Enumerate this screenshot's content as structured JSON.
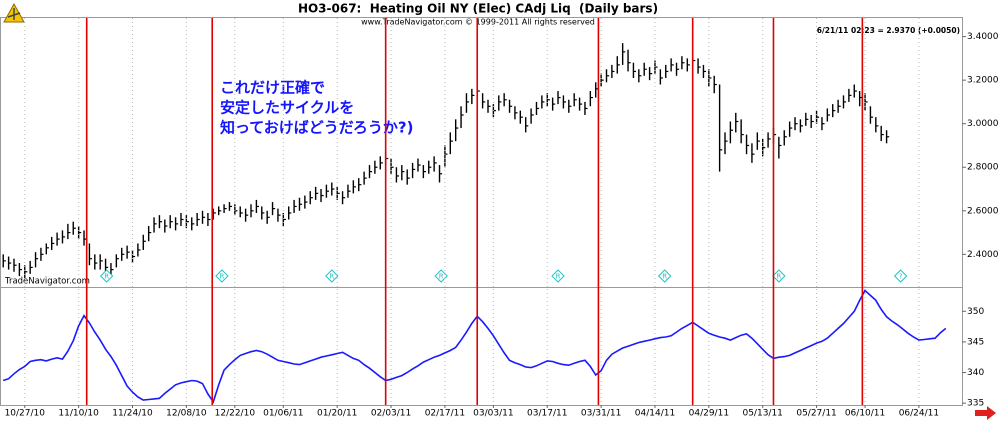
{
  "chart_data": [
    {
      "type": "hlc",
      "title": "HO3-067:  Heating Oil NY (Elec) CAdj Liq  (Daily bars)",
      "subtitle": "www.TradeNavigator.com © 1999-2011 All rights reserved",
      "quote": "6/21/11 02:23 = 2.9370 (+0.0050)",
      "watermark": "TradeNavigator.com",
      "annotation_lines": [
        "これだけ正確で",
        "安定したサイクルを",
        "知っておけばどうだろうか?)"
      ],
      "annotation_color": "#1414ff",
      "color": "#000000",
      "high": [
        2.4,
        2.39,
        2.38,
        2.36,
        2.35,
        2.37,
        2.41,
        2.43,
        2.45,
        2.48,
        2.5,
        2.51,
        2.54,
        2.55,
        2.53,
        2.51,
        2.45,
        2.4,
        2.4,
        2.38,
        2.36,
        2.4,
        2.43,
        2.44,
        2.42,
        2.45,
        2.49,
        2.53,
        2.57,
        2.58,
        2.56,
        2.58,
        2.57,
        2.59,
        2.58,
        2.57,
        2.59,
        2.6,
        2.59,
        2.61,
        2.62,
        2.63,
        2.64,
        2.63,
        2.62,
        2.61,
        2.63,
        2.65,
        2.62,
        2.6,
        2.64,
        2.61,
        2.59,
        2.62,
        2.65,
        2.66,
        2.67,
        2.69,
        2.71,
        2.7,
        2.72,
        2.73,
        2.71,
        2.69,
        2.72,
        2.74,
        2.75,
        2.78,
        2.81,
        2.83,
        2.85,
        2.87,
        2.84,
        2.8,
        2.81,
        2.79,
        2.82,
        2.84,
        2.81,
        2.83,
        2.85,
        2.81,
        2.9,
        2.96,
        3.02,
        3.08,
        3.14,
        3.16,
        3.18,
        3.14,
        3.11,
        3.09,
        3.13,
        3.14,
        3.11,
        3.08,
        3.06,
        3.03,
        3.07,
        3.1,
        3.13,
        3.14,
        3.12,
        3.15,
        3.13,
        3.11,
        3.14,
        3.12,
        3.1,
        3.15,
        3.19,
        3.23,
        3.25,
        3.27,
        3.31,
        3.37,
        3.34,
        3.28,
        3.25,
        3.28,
        3.26,
        3.29,
        3.25,
        3.27,
        3.3,
        3.28,
        3.31,
        3.3,
        3.32,
        3.3,
        3.27,
        3.25,
        3.22,
        3.18,
        2.96,
        3.01,
        3.05,
        3.02,
        2.95,
        2.91,
        2.96,
        2.93,
        2.96,
        2.98,
        2.94,
        2.97,
        3.01,
        3.03,
        3.02,
        3.05,
        3.04,
        3.06,
        3.03,
        3.07,
        3.09,
        3.11,
        3.13,
        3.16,
        3.18,
        3.15,
        3.14,
        3.08,
        3.03,
        2.99,
        2.97
      ],
      "low": [
        2.34,
        2.33,
        2.32,
        2.3,
        2.29,
        2.31,
        2.34,
        2.37,
        2.4,
        2.42,
        2.44,
        2.45,
        2.47,
        2.49,
        2.47,
        2.44,
        2.35,
        2.33,
        2.33,
        2.31,
        2.3,
        2.34,
        2.37,
        2.38,
        2.36,
        2.39,
        2.42,
        2.46,
        2.5,
        2.52,
        2.5,
        2.52,
        2.51,
        2.53,
        2.52,
        2.51,
        2.53,
        2.54,
        2.53,
        2.56,
        2.58,
        2.59,
        2.6,
        2.58,
        2.57,
        2.55,
        2.57,
        2.59,
        2.56,
        2.54,
        2.58,
        2.55,
        2.53,
        2.56,
        2.59,
        2.6,
        2.61,
        2.63,
        2.65,
        2.64,
        2.66,
        2.67,
        2.65,
        2.63,
        2.66,
        2.68,
        2.69,
        2.72,
        2.75,
        2.77,
        2.79,
        2.81,
        2.77,
        2.73,
        2.74,
        2.72,
        2.75,
        2.78,
        2.75,
        2.77,
        2.78,
        2.73,
        2.8,
        2.86,
        2.92,
        2.98,
        3.05,
        3.09,
        3.11,
        3.07,
        3.05,
        3.03,
        3.06,
        3.08,
        3.05,
        3.02,
        3.0,
        2.96,
        3.0,
        3.04,
        3.07,
        3.08,
        3.06,
        3.09,
        3.07,
        3.05,
        3.08,
        3.06,
        3.04,
        3.08,
        3.12,
        3.17,
        3.19,
        3.21,
        3.23,
        3.27,
        3.24,
        3.21,
        3.19,
        3.22,
        3.2,
        3.23,
        3.18,
        3.21,
        3.24,
        3.22,
        3.25,
        3.24,
        3.25,
        3.23,
        3.21,
        3.17,
        3.14,
        2.78,
        2.86,
        2.91,
        2.96,
        2.91,
        2.86,
        2.82,
        2.88,
        2.85,
        2.89,
        2.91,
        2.84,
        2.9,
        2.94,
        2.97,
        2.96,
        2.99,
        2.98,
        3.0,
        2.97,
        3.01,
        3.03,
        3.05,
        3.07,
        3.1,
        3.12,
        3.08,
        3.06,
        3.0,
        2.96,
        2.92,
        2.91
      ],
      "close": [
        2.37,
        2.36,
        2.35,
        2.33,
        2.32,
        2.34,
        2.38,
        2.4,
        2.43,
        2.45,
        2.47,
        2.48,
        2.5,
        2.52,
        2.5,
        2.47,
        2.38,
        2.36,
        2.37,
        2.34,
        2.33,
        2.38,
        2.4,
        2.41,
        2.39,
        2.42,
        2.46,
        2.5,
        2.54,
        2.55,
        2.53,
        2.55,
        2.54,
        2.56,
        2.55,
        2.54,
        2.56,
        2.57,
        2.56,
        2.59,
        2.6,
        2.61,
        2.62,
        2.6,
        2.59,
        2.58,
        2.6,
        2.62,
        2.59,
        2.57,
        2.61,
        2.58,
        2.56,
        2.59,
        2.62,
        2.63,
        2.64,
        2.66,
        2.68,
        2.67,
        2.69,
        2.7,
        2.68,
        2.66,
        2.69,
        2.71,
        2.72,
        2.75,
        2.78,
        2.8,
        2.82,
        2.84,
        2.8,
        2.76,
        2.78,
        2.75,
        2.79,
        2.81,
        2.78,
        2.8,
        2.82,
        2.77,
        2.86,
        2.92,
        2.98,
        3.04,
        3.1,
        3.13,
        3.15,
        3.1,
        3.08,
        3.06,
        3.1,
        3.11,
        3.08,
        3.05,
        3.03,
        2.99,
        3.04,
        3.07,
        3.1,
        3.11,
        3.09,
        3.12,
        3.1,
        3.08,
        3.11,
        3.09,
        3.07,
        3.12,
        3.16,
        3.2,
        3.22,
        3.24,
        3.27,
        3.33,
        3.28,
        3.24,
        3.22,
        3.25,
        3.23,
        3.26,
        3.21,
        3.24,
        3.27,
        3.25,
        3.28,
        3.27,
        3.29,
        3.26,
        3.24,
        3.21,
        3.18,
        2.88,
        2.92,
        2.97,
        3.01,
        2.95,
        2.9,
        2.86,
        2.92,
        2.89,
        2.93,
        2.95,
        2.9,
        2.94,
        2.98,
        3.0,
        2.99,
        3.02,
        3.01,
        3.03,
        3.0,
        3.04,
        3.06,
        3.08,
        3.1,
        3.13,
        3.15,
        3.12,
        3.1,
        3.03,
        2.99,
        2.95,
        2.94
      ],
      "xlim": [
        -0.6,
        178
      ],
      "ylim": [
        2.25,
        3.49
      ],
      "yticks": [
        {
          "value": 2.4,
          "label": "2.4000"
        },
        {
          "value": 2.6,
          "label": "2.6000"
        },
        {
          "value": 2.8,
          "label": "2.8000"
        },
        {
          "value": 3.0,
          "label": "3.0000"
        },
        {
          "value": 3.2,
          "label": "3.2000"
        },
        {
          "value": 3.4,
          "label": "3.4000"
        }
      ],
      "cycle_lines": [
        15.5,
        38.8,
        71,
        88,
        110.5,
        128,
        143,
        159.5
      ],
      "cycle_color": "#e00000",
      "markers": [
        {
          "x": 19.2,
          "label": "R"
        },
        {
          "x": 40.6,
          "label": "R"
        },
        {
          "x": 61,
          "label": "R"
        },
        {
          "x": 81.3,
          "label": "R"
        },
        {
          "x": 103,
          "label": "R"
        },
        {
          "x": 122.8,
          "label": "R"
        },
        {
          "x": 144,
          "label": "R"
        },
        {
          "x": 166.6,
          "label": "?"
        }
      ],
      "marker_color": "#22c4c4"
    },
    {
      "type": "line",
      "color": "#1a1aff",
      "values": [
        338.7,
        339.0,
        339.8,
        340.5,
        341.0,
        341.8,
        342.0,
        342.1,
        341.9,
        342.2,
        342.4,
        342.2,
        343.5,
        345.2,
        347.6,
        349.3,
        348.1,
        346.6,
        345.3,
        343.8,
        342.6,
        341.2,
        339.5,
        337.8,
        336.8,
        336.0,
        335.5,
        335.6,
        335.7,
        335.8,
        336.6,
        337.3,
        338.0,
        338.3,
        338.5,
        338.7,
        338.6,
        338.2,
        336.5,
        335.2,
        338.0,
        340.4,
        341.3,
        342.1,
        342.8,
        343.1,
        343.4,
        343.6,
        343.4,
        343.0,
        342.5,
        342.0,
        341.8,
        341.6,
        341.4,
        341.3,
        341.6,
        341.9,
        342.2,
        342.5,
        342.7,
        342.9,
        343.1,
        343.3,
        342.8,
        342.3,
        342.0,
        341.3,
        340.7,
        340.0,
        339.3,
        338.7,
        338.9,
        339.2,
        339.5,
        340.0,
        340.6,
        341.1,
        341.7,
        342.1,
        342.5,
        342.8,
        343.2,
        343.6,
        344.1,
        345.3,
        346.6,
        348.0,
        349.2,
        348.3,
        347.2,
        346.0,
        344.6,
        343.2,
        342.0,
        341.6,
        341.3,
        340.9,
        340.8,
        341.1,
        341.5,
        341.9,
        341.8,
        341.5,
        341.3,
        341.2,
        341.5,
        341.8,
        342.0,
        341.0,
        339.6,
        340.3,
        342.0,
        343.0,
        343.5,
        344.0,
        344.3,
        344.6,
        344.9,
        345.1,
        345.3,
        345.5,
        345.7,
        345.8,
        346.0,
        346.6,
        347.2,
        347.7,
        348.2,
        347.6,
        347.0,
        346.4,
        346.1,
        345.8,
        345.6,
        345.3,
        345.7,
        346.1,
        346.3,
        345.6,
        344.7,
        343.8,
        342.9,
        342.3,
        342.5,
        342.6,
        342.8,
        343.2,
        343.6,
        344.0,
        344.4,
        344.8,
        345.1,
        345.6,
        346.4,
        347.2,
        348.0,
        349.0,
        350.0,
        351.8,
        353.4,
        352.6,
        351.8,
        350.3,
        349.1,
        348.4,
        347.8,
        347.1,
        346.4,
        345.8,
        345.3,
        345.4,
        345.5,
        345.6,
        346.5,
        347.2
      ],
      "xlim": [
        -0.6,
        178
      ],
      "ylim": [
        334.7,
        353.8
      ],
      "yticks": [
        335,
        340,
        345,
        350
      ],
      "xticks": [
        {
          "value": 4,
          "label": "10/27/10"
        },
        {
          "value": 14,
          "label": "11/10/10"
        },
        {
          "value": 24,
          "label": "11/24/10"
        },
        {
          "value": 34,
          "label": "12/08/10"
        },
        {
          "value": 43,
          "label": "12/22/10"
        },
        {
          "value": 52,
          "label": "01/06/11"
        },
        {
          "value": 62,
          "label": "01/20/11"
        },
        {
          "value": 72,
          "label": "02/03/11"
        },
        {
          "value": 82,
          "label": "02/17/11"
        },
        {
          "value": 91,
          "label": "03/03/11"
        },
        {
          "value": 101,
          "label": "03/17/11"
        },
        {
          "value": 111,
          "label": "03/31/11"
        },
        {
          "value": 121,
          "label": "04/14/11"
        },
        {
          "value": 131,
          "label": "04/29/11"
        },
        {
          "value": 141,
          "label": "05/13/11"
        },
        {
          "value": 151,
          "label": "05/27/11"
        },
        {
          "value": 160,
          "label": "06/10/11"
        },
        {
          "value": 170,
          "label": "06/24/11"
        }
      ],
      "grid": true
    }
  ]
}
